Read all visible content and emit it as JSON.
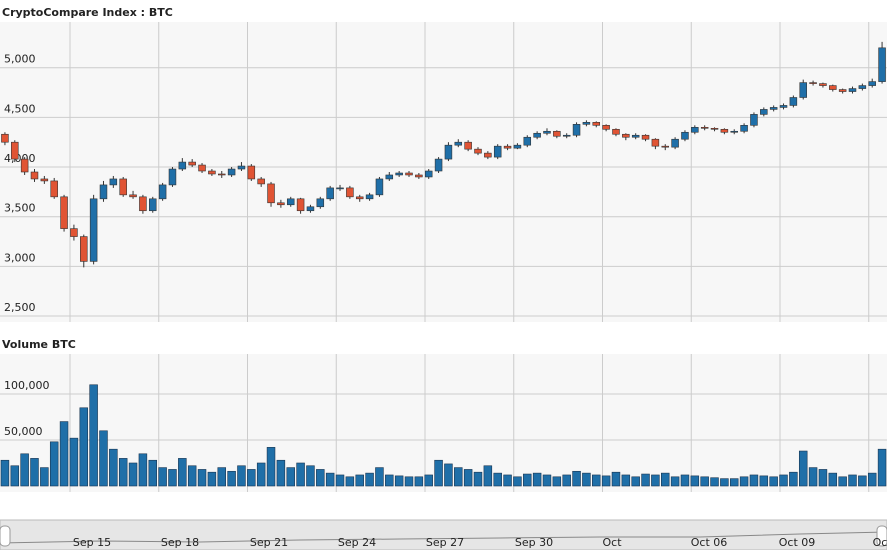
{
  "chart_data": [
    {
      "type": "candlestick",
      "title": "CryptoCompare Index : BTC",
      "open": [
        4330,
        4250,
        4080,
        3950,
        3880,
        3860,
        3700,
        3380,
        3300,
        3050,
        3680,
        3820,
        3880,
        3720,
        3700,
        3560,
        3680,
        3820,
        3980,
        4050,
        4020,
        3960,
        3930,
        3920,
        3980,
        4010,
        3880,
        3830,
        3640,
        3620,
        3680,
        3560,
        3600,
        3680,
        3790,
        3790,
        3700,
        3680,
        3720,
        3880,
        3920,
        3940,
        3920,
        3900,
        3960,
        4080,
        4220,
        4250,
        4180,
        4140,
        4100,
        4210,
        4190,
        4220,
        4300,
        4340,
        4360,
        4310,
        4320,
        4430,
        4450,
        4420,
        4380,
        4330,
        4300,
        4320,
        4280,
        4210,
        4200,
        4280,
        4350,
        4400,
        4390,
        4380,
        4350,
        4360,
        4420,
        4530,
        4580,
        4600,
        4620,
        4700,
        4850,
        4840,
        4820,
        4780,
        4760,
        4790,
        4820,
        4860
      ],
      "high": [
        4350,
        4270,
        4100,
        3980,
        3910,
        3890,
        3720,
        3420,
        3320,
        3720,
        3860,
        3910,
        3900,
        3760,
        3720,
        3700,
        3840,
        4000,
        4090,
        4080,
        4040,
        3980,
        3960,
        4000,
        4050,
        4030,
        3900,
        3850,
        3670,
        3700,
        3690,
        3620,
        3700,
        3810,
        3820,
        3810,
        3720,
        3740,
        3900,
        3950,
        3960,
        3960,
        3940,
        3980,
        4100,
        4250,
        4280,
        4270,
        4200,
        4160,
        4230,
        4230,
        4240,
        4320,
        4360,
        4390,
        4370,
        4340,
        4450,
        4470,
        4460,
        4430,
        4390,
        4340,
        4340,
        4330,
        4290,
        4230,
        4300,
        4370,
        4420,
        4420,
        4400,
        4390,
        4380,
        4440,
        4550,
        4600,
        4620,
        4640,
        4720,
        4880,
        4870,
        4850,
        4830,
        4790,
        4810,
        4840,
        4890,
        5260
      ],
      "low": [
        4220,
        4050,
        3920,
        3850,
        3830,
        3680,
        3350,
        3260,
        2990,
        3020,
        3650,
        3790,
        3700,
        3680,
        3530,
        3540,
        3660,
        3800,
        3960,
        4000,
        3940,
        3910,
        3890,
        3900,
        3960,
        3860,
        3800,
        3600,
        3590,
        3600,
        3530,
        3540,
        3580,
        3660,
        3760,
        3680,
        3650,
        3660,
        3700,
        3860,
        3900,
        3900,
        3880,
        3880,
        3940,
        4060,
        4200,
        4160,
        4120,
        4080,
        4080,
        4170,
        4180,
        4200,
        4280,
        4320,
        4290,
        4290,
        4300,
        4410,
        4400,
        4360,
        4310,
        4270,
        4280,
        4260,
        4180,
        4170,
        4180,
        4260,
        4330,
        4370,
        4360,
        4330,
        4330,
        4340,
        4400,
        4510,
        4560,
        4580,
        4600,
        4680,
        4820,
        4800,
        4760,
        4740,
        4740,
        4770,
        4800,
        4840
      ],
      "close": [
        4250,
        4080,
        3950,
        3880,
        3860,
        3700,
        3380,
        3300,
        3050,
        3680,
        3820,
        3880,
        3720,
        3700,
        3560,
        3680,
        3820,
        3980,
        4050,
        4020,
        3960,
        3930,
        3920,
        3980,
        4010,
        3880,
        3830,
        3640,
        3620,
        3680,
        3560,
        3600,
        3680,
        3790,
        3790,
        3700,
        3680,
        3720,
        3880,
        3920,
        3940,
        3920,
        3900,
        3960,
        4080,
        4220,
        4250,
        4180,
        4140,
        4100,
        4210,
        4190,
        4220,
        4300,
        4340,
        4360,
        4310,
        4320,
        4430,
        4450,
        4420,
        4380,
        4330,
        4300,
        4320,
        4280,
        4210,
        4200,
        4280,
        4350,
        4400,
        4390,
        4380,
        4350,
        4360,
        4420,
        4530,
        4580,
        4600,
        4620,
        4700,
        4850,
        4840,
        4820,
        4780,
        4760,
        4790,
        4820,
        4860,
        5200
      ],
      "up_color": "#1f6fa8",
      "down_color": "#e05434",
      "ylim": [
        2440,
        5460
      ],
      "yticks": [
        {
          "value": 2500,
          "label": "2,500"
        },
        {
          "value": 3000,
          "label": "3,000"
        },
        {
          "value": 3500,
          "label": "3,500"
        },
        {
          "value": 4000,
          "label": "4,000"
        },
        {
          "value": 4500,
          "label": "4,500"
        },
        {
          "value": 5000,
          "label": "5,000"
        }
      ],
      "grid": true
    },
    {
      "type": "bar",
      "title": "Volume BTC",
      "values": [
        28000,
        22000,
        35000,
        30000,
        20000,
        48000,
        70000,
        52000,
        85000,
        110000,
        60000,
        40000,
        30000,
        25000,
        35000,
        28000,
        20000,
        18000,
        30000,
        22000,
        18000,
        15000,
        20000,
        16000,
        22000,
        18000,
        25000,
        42000,
        28000,
        20000,
        25000,
        22000,
        18000,
        14000,
        12000,
        10000,
        12000,
        14000,
        20000,
        12000,
        11000,
        10000,
        10000,
        12000,
        28000,
        24000,
        20000,
        18000,
        15000,
        22000,
        14000,
        12000,
        10000,
        13000,
        14000,
        12000,
        10000,
        12000,
        16000,
        14000,
        12000,
        11000,
        15000,
        12000,
        10000,
        13000,
        12000,
        14000,
        10000,
        12000,
        11000,
        10000,
        9000,
        8000,
        8000,
        10000,
        12000,
        11000,
        10000,
        12000,
        15000,
        38000,
        20000,
        18000,
        14000,
        10000,
        12000,
        11000,
        14000,
        40000
      ],
      "color": "#1f6fa8",
      "ylim": [
        0,
        143000
      ],
      "yticks": [
        {
          "value": 50000,
          "label": "50,000"
        },
        {
          "value": 100000,
          "label": "100,000"
        }
      ],
      "grid": true
    }
  ],
  "navigator": {
    "labels": [
      "Sep 15",
      "Sep 18",
      "Sep 21",
      "Sep 24",
      "Sep 27",
      "Sep 30",
      "Oct",
      "Oct 06",
      "Oct 09",
      "Oc"
    ]
  }
}
